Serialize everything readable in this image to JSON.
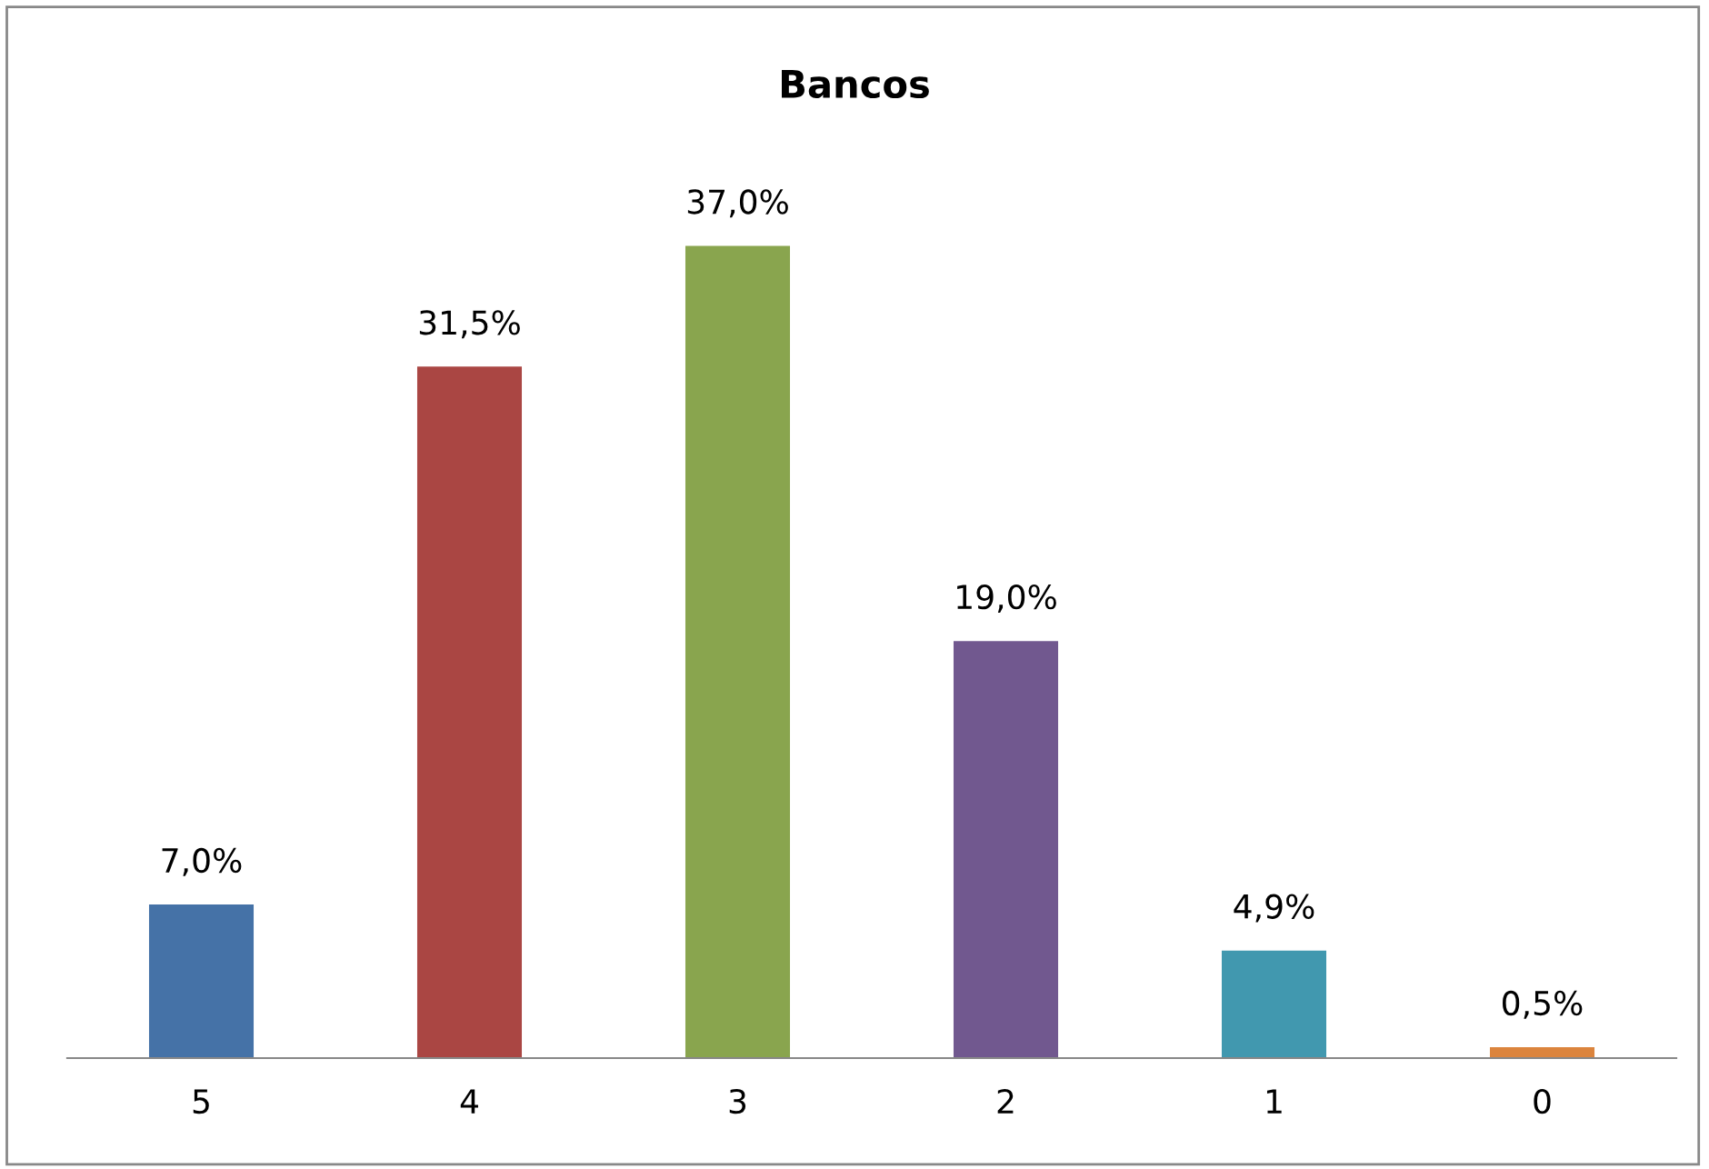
{
  "chart_data": {
    "type": "bar",
    "title": "Bancos",
    "categories": [
      "5",
      "4",
      "3",
      "2",
      "1",
      "0"
    ],
    "values": [
      7.0,
      31.5,
      37.0,
      19.0,
      4.9,
      0.5
    ],
    "colors": [
      "#4572a7",
      "#aa4643",
      "#89a54e",
      "#71588f",
      "#4198af",
      "#db843d"
    ],
    "value_labels": [
      "7,0%",
      "31,5%",
      "37,0%",
      "19,0%",
      "4,9%",
      "0,5%"
    ],
    "grid": false,
    "legend": false
  }
}
